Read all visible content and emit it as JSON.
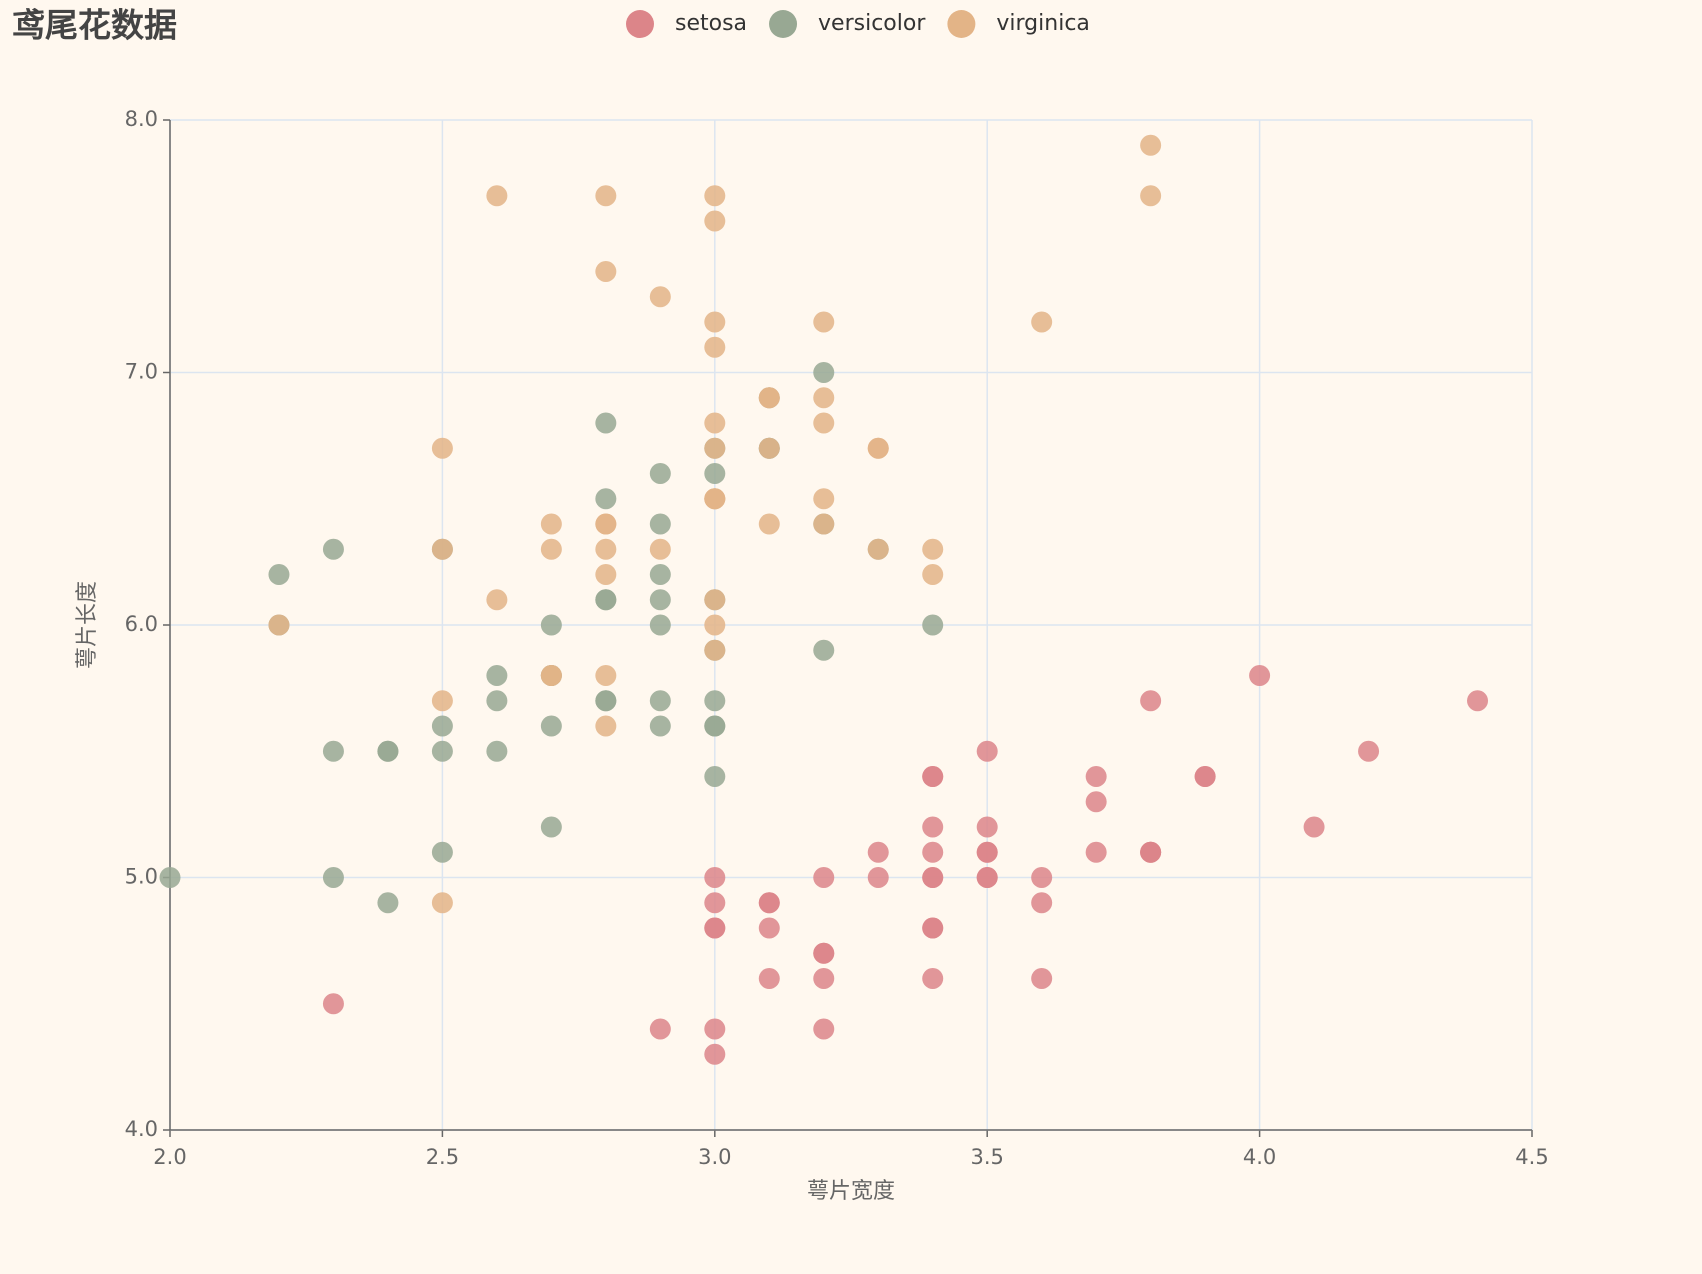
{
  "chart_data": {
    "type": "scatter",
    "title": "鸢尾花数据",
    "x_label": "萼片宽度",
    "y_label": "萼片长度",
    "xlim": [
      2,
      4.5
    ],
    "ylim": [
      4,
      8
    ],
    "xticks": [
      {
        "value": 2,
        "label": "2.0"
      },
      2.5,
      {
        "value": 3,
        "label": "3.0"
      },
      3.5,
      {
        "value": 4,
        "label": "4.0"
      },
      4.5
    ],
    "yticks": [
      {
        "value": 4,
        "label": "4.0"
      },
      {
        "value": 5,
        "label": "5.0"
      },
      {
        "value": 6,
        "label": "6.0"
      },
      {
        "value": 7,
        "label": "7.0"
      },
      {
        "value": 8,
        "label": "8.0"
      }
    ],
    "grid": true,
    "legend": "top",
    "series": [
      {
        "name": "setosa",
        "color": "#dc8589",
        "x": [
          3.5,
          3.0,
          3.2,
          3.1,
          3.6,
          3.9,
          3.4,
          3.4,
          2.9,
          3.1,
          3.7,
          3.4,
          3.0,
          3.0,
          4.0,
          4.4,
          3.9,
          3.5,
          3.8,
          3.8,
          3.4,
          3.7,
          3.6,
          3.3,
          3.4,
          3.0,
          3.4,
          3.5,
          3.4,
          3.2,
          3.1,
          3.4,
          4.1,
          4.2,
          3.1,
          3.2,
          3.5,
          3.6,
          3.0,
          3.4,
          3.5,
          2.3,
          3.2,
          3.5,
          3.8,
          3.0,
          3.8,
          3.2,
          3.7,
          3.3
        ],
        "values": [
          5.1,
          4.9,
          4.7,
          4.6,
          5.0,
          5.4,
          4.6,
          5.0,
          4.4,
          4.9,
          5.4,
          4.8,
          4.8,
          4.3,
          5.8,
          5.7,
          5.4,
          5.1,
          5.7,
          5.1,
          5.4,
          5.1,
          4.6,
          5.1,
          4.8,
          5.0,
          5.0,
          5.2,
          5.2,
          4.7,
          4.8,
          5.4,
          5.2,
          5.5,
          4.9,
          5.0,
          5.5,
          4.9,
          4.4,
          5.1,
          5.0,
          4.5,
          4.4,
          5.0,
          5.1,
          4.8,
          5.1,
          4.6,
          5.3,
          5.0
        ]
      },
      {
        "name": "versicolor",
        "color": "#98a893",
        "x": [
          3.2,
          3.2,
          3.1,
          2.3,
          2.8,
          2.8,
          3.3,
          2.4,
          2.9,
          2.7,
          2.0,
          3.0,
          2.2,
          2.9,
          2.9,
          3.1,
          3.0,
          2.7,
          2.2,
          2.5,
          3.2,
          2.8,
          2.5,
          2.8,
          2.9,
          3.0,
          2.8,
          3.0,
          2.9,
          2.6,
          2.4,
          2.4,
          2.7,
          2.7,
          3.0,
          3.4,
          3.1,
          2.3,
          3.0,
          2.5,
          2.6,
          3.0,
          2.6,
          2.3,
          2.7,
          3.0,
          2.9,
          2.9,
          2.5,
          2.8
        ],
        "values": [
          7.0,
          6.4,
          6.9,
          5.5,
          6.5,
          5.7,
          6.3,
          4.9,
          6.6,
          5.2,
          5.0,
          5.9,
          6.0,
          6.1,
          5.6,
          6.7,
          5.6,
          5.8,
          6.2,
          5.6,
          5.9,
          6.1,
          6.3,
          6.1,
          6.4,
          6.6,
          6.8,
          6.7,
          6.0,
          5.7,
          5.5,
          5.5,
          5.8,
          6.0,
          5.4,
          6.0,
          6.7,
          6.3,
          5.6,
          5.5,
          5.5,
          6.1,
          5.8,
          5.0,
          5.6,
          5.7,
          5.7,
          6.2,
          5.1,
          5.7
        ]
      },
      {
        "name": "virginica",
        "color": "#e3b487",
        "x": [
          3.3,
          2.7,
          3.0,
          2.9,
          3.0,
          3.0,
          2.5,
          2.9,
          2.5,
          3.6,
          3.2,
          2.7,
          3.0,
          2.5,
          2.8,
          3.2,
          3.0,
          3.8,
          2.6,
          2.2,
          3.2,
          2.8,
          2.8,
          2.7,
          3.3,
          3.2,
          2.8,
          3.0,
          2.8,
          3.0,
          2.8,
          3.8,
          2.8,
          2.8,
          2.6,
          3.0,
          3.4,
          3.1,
          3.0,
          3.1,
          3.1,
          3.1,
          2.7,
          3.2,
          3.3,
          3.0,
          2.5,
          3.0,
          3.4,
          3.0
        ],
        "values": [
          6.3,
          5.8,
          7.1,
          6.3,
          6.5,
          7.6,
          4.9,
          7.3,
          6.7,
          7.2,
          6.5,
          6.4,
          6.8,
          5.7,
          5.8,
          6.4,
          6.5,
          7.7,
          7.7,
          6.0,
          6.9,
          5.6,
          7.7,
          6.3,
          6.7,
          7.2,
          6.2,
          6.1,
          6.4,
          7.2,
          7.4,
          7.9,
          6.4,
          6.3,
          6.1,
          7.7,
          6.3,
          6.4,
          6.0,
          6.9,
          6.7,
          6.9,
          5.8,
          6.8,
          6.7,
          6.7,
          6.3,
          6.5,
          6.2,
          5.9
        ]
      }
    ]
  }
}
